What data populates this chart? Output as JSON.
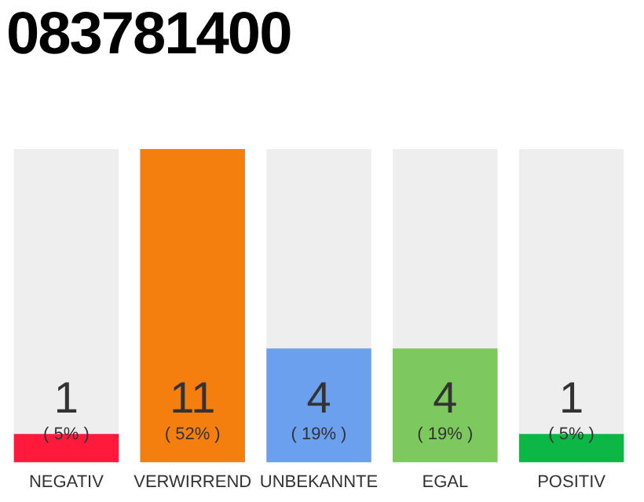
{
  "chart_data": {
    "type": "bar",
    "title": "083781400",
    "categories": [
      "NEGATIV",
      "VERWIRREND",
      "UNBEKANNTE",
      "EGAL",
      "POSITIV"
    ],
    "values": [
      1,
      11,
      4,
      4,
      1
    ],
    "colors": [
      "#ff1a3c",
      "#f47f0f",
      "#6aa0ee",
      "#7dc95e",
      "#0bb846"
    ],
    "value_labels": [
      "1\n( 5% )",
      "11\n( 52% )",
      "4\n( 19% )",
      "4\n( 19% )",
      "1\n( 5% )"
    ],
    "grid": false,
    "legend": false
  }
}
